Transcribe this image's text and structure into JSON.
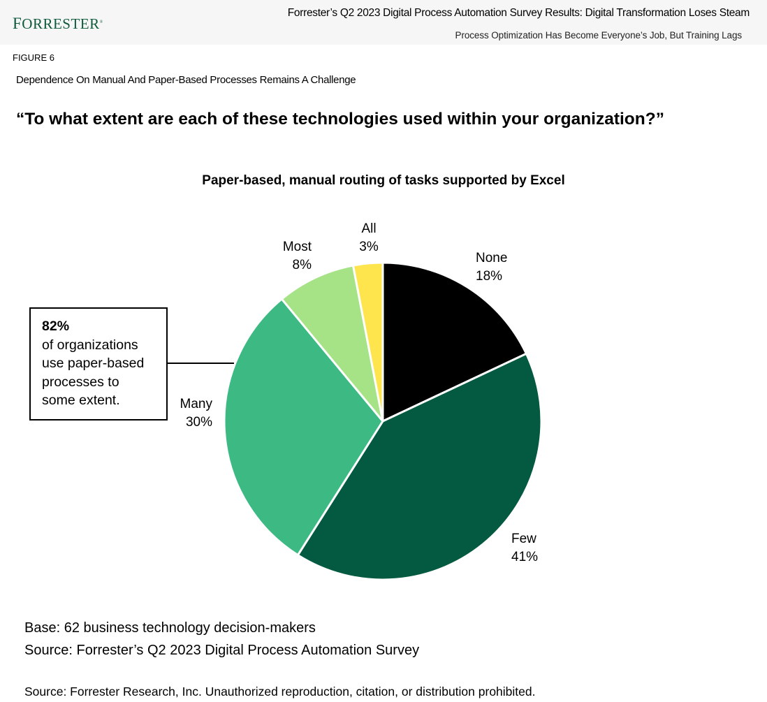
{
  "header": {
    "logo": "Forrester",
    "report_title": "Forrester’s Q2 2023 Digital Process Automation Survey Results: Digital Transformation Loses Steam",
    "report_subtitle": "Process Optimization Has Become Everyone’s Job, But Training Lags"
  },
  "figure": {
    "label": "FIGURE 6",
    "title": "Dependence On Manual And Paper-Based Processes Remains A Challenge",
    "question": "“To what extent are each of these technologies used within your organization?”"
  },
  "callout": {
    "value": "82%",
    "text": "of organizations use paper-based processes to some extent."
  },
  "footer": {
    "base": "Base: 62 business technology decision-makers",
    "source": "Source: Forrester’s Q2 2023 Digital Process Automation Survey",
    "copyright": "Source: Forrester Research, Inc. Unauthorized reproduction, citation, or distribution prohibited."
  },
  "labels": {
    "none_name": "None",
    "none_pct": "18%",
    "few_name": "Few",
    "few_pct": "41%",
    "many_name": "Many",
    "many_pct": "30%",
    "most_name": "Most",
    "most_pct": "8%",
    "all_name": "All",
    "all_pct": "3%"
  },
  "chart_data": {
    "type": "pie",
    "title": "Paper-based, manual routing of tasks supported by Excel",
    "categories": [
      "None",
      "Few",
      "Many",
      "Most",
      "All"
    ],
    "values": [
      18,
      41,
      30,
      8,
      3
    ],
    "unit": "%",
    "colors": [
      "#000000",
      "#035a41",
      "#3dba83",
      "#a5e386",
      "#fee54e"
    ],
    "start_angle": "12 o'clock, clockwise",
    "annotation": "82% of organizations use paper-based processes to some extent."
  }
}
